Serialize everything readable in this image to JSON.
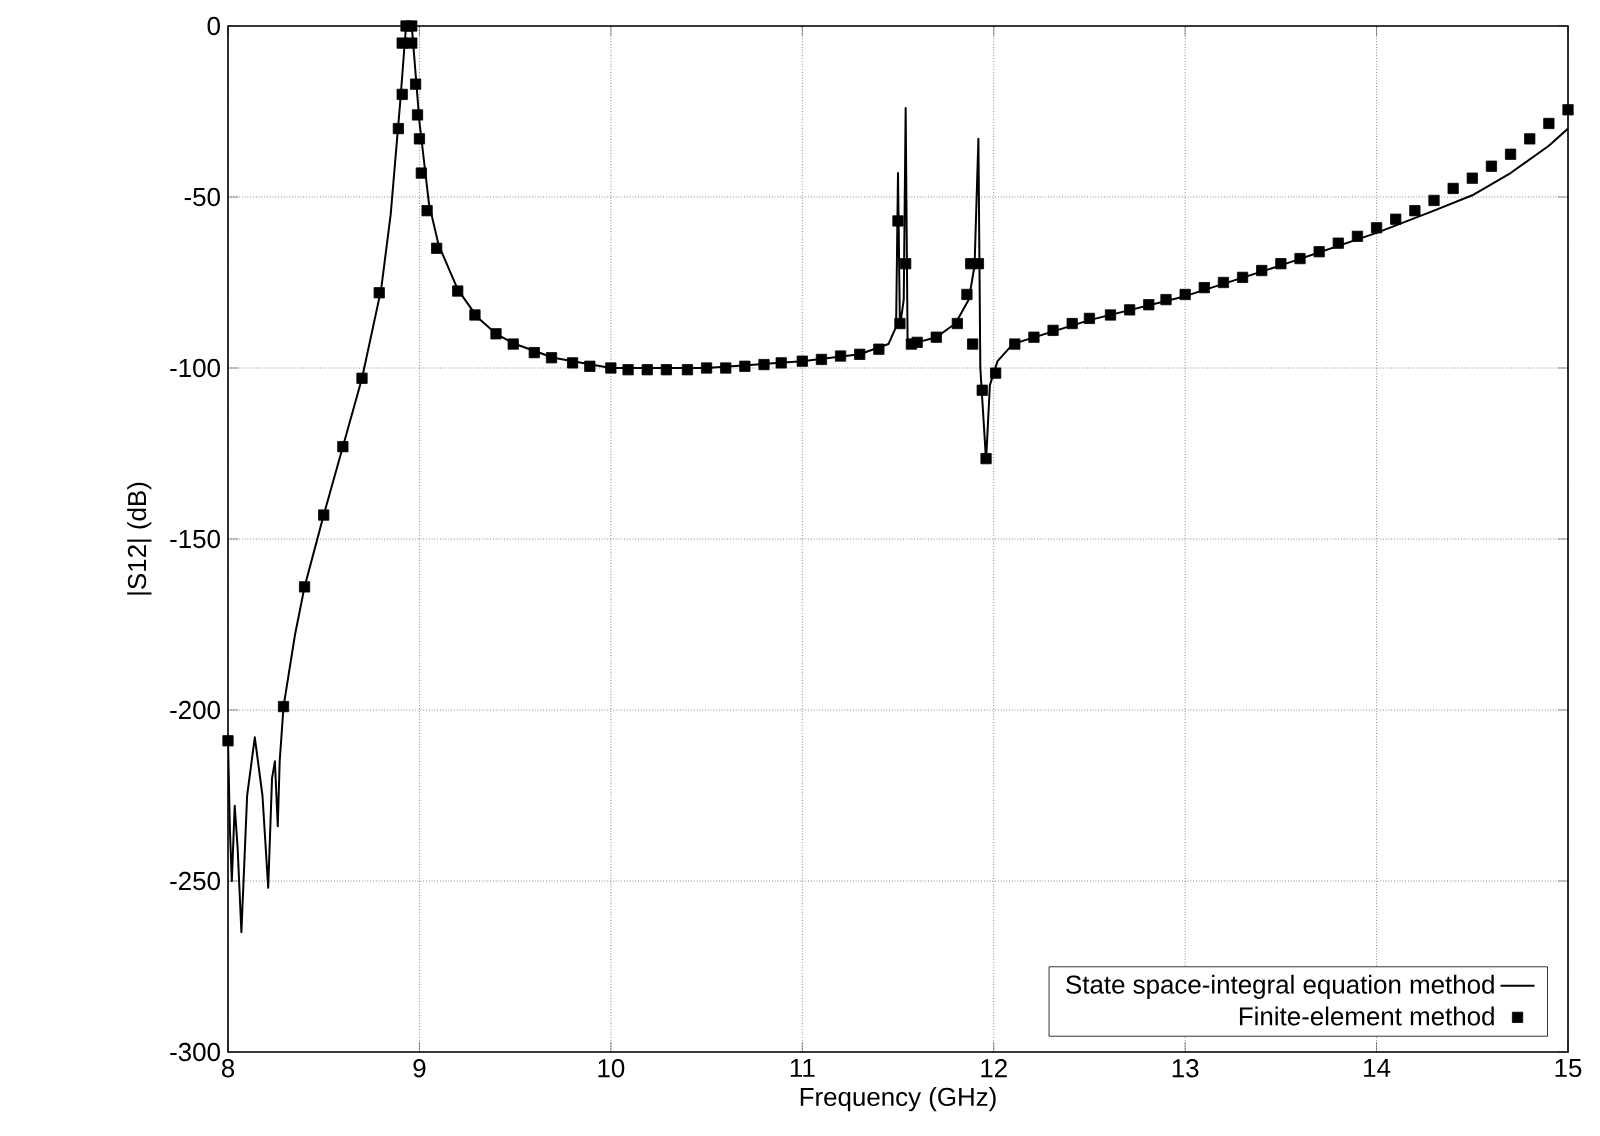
{
  "chart_data": {
    "type": "line",
    "xlabel": "Frequency (GHz)",
    "ylabel": "|S12| (dB)",
    "xlim": [
      8,
      15
    ],
    "ylim": [
      -300,
      0
    ],
    "xticks": [
      8,
      9,
      10,
      11,
      12,
      13,
      14,
      15
    ],
    "yticks": [
      -300,
      -250,
      -200,
      -150,
      -100,
      -50,
      0
    ],
    "grid": true,
    "legend": "bottom right",
    "series": [
      {
        "name": "State space-integral equation method",
        "color": "#000000",
        "marker": "none",
        "line_style": "solid",
        "x": [
          8.0,
          8.01,
          8.02,
          8.035,
          8.05,
          8.07,
          8.1,
          8.14,
          8.18,
          8.21,
          8.23,
          8.245,
          8.26,
          8.27,
          8.29,
          8.35,
          8.4,
          8.5,
          8.6,
          8.7,
          8.8,
          8.85,
          8.9,
          8.93,
          8.96,
          8.98,
          9.0,
          9.05,
          9.1,
          9.2,
          9.3,
          9.4,
          9.5,
          9.7,
          10.0,
          10.5,
          11.0,
          11.3,
          11.45,
          11.49,
          11.5,
          11.51,
          11.53,
          11.54,
          11.55,
          11.6,
          11.7,
          11.8,
          11.87,
          11.9,
          11.92,
          11.93,
          11.96,
          11.98,
          12.02,
          12.1,
          12.5,
          13.0,
          13.5,
          14.0,
          14.3,
          14.5,
          14.7,
          14.9,
          15.0
        ],
        "values": [
          -209,
          -235,
          -250,
          -228,
          -240,
          -265,
          -225,
          -208,
          -225,
          -252,
          -220,
          -215,
          -234,
          -215,
          -199,
          -178,
          -164,
          -143,
          -123,
          -103,
          -77,
          -55,
          -22,
          0,
          0,
          -14,
          -28,
          -52,
          -64,
          -77,
          -85,
          -90,
          -93,
          -97,
          -100,
          -100,
          -98,
          -96,
          -93,
          -88,
          -43,
          -88,
          -80,
          -24,
          -92,
          -92.5,
          -91,
          -87,
          -80,
          -70,
          -33,
          -100,
          -127,
          -105,
          -98,
          -93,
          -86,
          -79,
          -70,
          -60.5,
          -54,
          -49.5,
          -43,
          -35,
          -30
        ]
      },
      {
        "name": "Finite-element method",
        "type": "scatter",
        "color": "#000000",
        "marker": "square",
        "x": [
          8.0,
          8.29,
          8.4,
          8.5,
          8.6,
          8.7,
          8.79,
          8.89,
          8.91,
          8.91,
          8.93,
          8.96,
          8.96,
          8.98,
          8.99,
          9.0,
          9.01,
          9.04,
          9.09,
          9.2,
          9.29,
          9.4,
          9.49,
          9.6,
          9.69,
          9.8,
          9.89,
          10.0,
          10.09,
          10.19,
          10.29,
          10.4,
          10.5,
          10.6,
          10.7,
          10.8,
          10.89,
          11.0,
          11.1,
          11.2,
          11.3,
          11.4,
          11.5,
          11.51,
          11.54,
          11.57,
          11.6,
          11.7,
          11.81,
          11.86,
          11.88,
          11.89,
          11.92,
          11.94,
          11.96,
          12.01,
          12.11,
          12.21,
          12.31,
          12.41,
          12.5,
          12.61,
          12.71,
          12.81,
          12.9,
          13.0,
          13.1,
          13.2,
          13.3,
          13.4,
          13.5,
          13.6,
          13.7,
          13.8,
          13.9,
          14.0,
          14.1,
          14.2,
          14.3,
          14.4,
          14.5,
          14.6,
          14.7,
          14.8,
          14.9,
          15.0
        ],
        "values": [
          -209,
          -199,
          -164,
          -143,
          -123,
          -103,
          -78,
          -30,
          -20,
          -5,
          0,
          0,
          -5,
          -17,
          -26,
          -33,
          -43,
          -54,
          -65,
          -77.5,
          -84.5,
          -90,
          -93,
          -95.5,
          -97,
          -98.5,
          -99.5,
          -100,
          -100.5,
          -100.5,
          -100.5,
          -100.5,
          -100,
          -100,
          -99.5,
          -99,
          -98.5,
          -98,
          -97.5,
          -96.5,
          -96,
          -94.5,
          -57,
          -87,
          -69.5,
          -93,
          -92.5,
          -91,
          -87,
          -78.5,
          -69.5,
          -93,
          -69.5,
          -106.5,
          -126.5,
          -101.5,
          -93,
          -91,
          -89,
          -87,
          -85.5,
          -84.5,
          -83,
          -81.5,
          -80,
          -78.5,
          -76.5,
          -75,
          -73.5,
          -71.5,
          -69.5,
          -68,
          -66,
          -63.5,
          -61.5,
          -59,
          -56.5,
          -54,
          -51,
          -47.5,
          -44.5,
          -41,
          -37.5,
          -33,
          -28.5,
          -24.5
        ]
      }
    ]
  }
}
